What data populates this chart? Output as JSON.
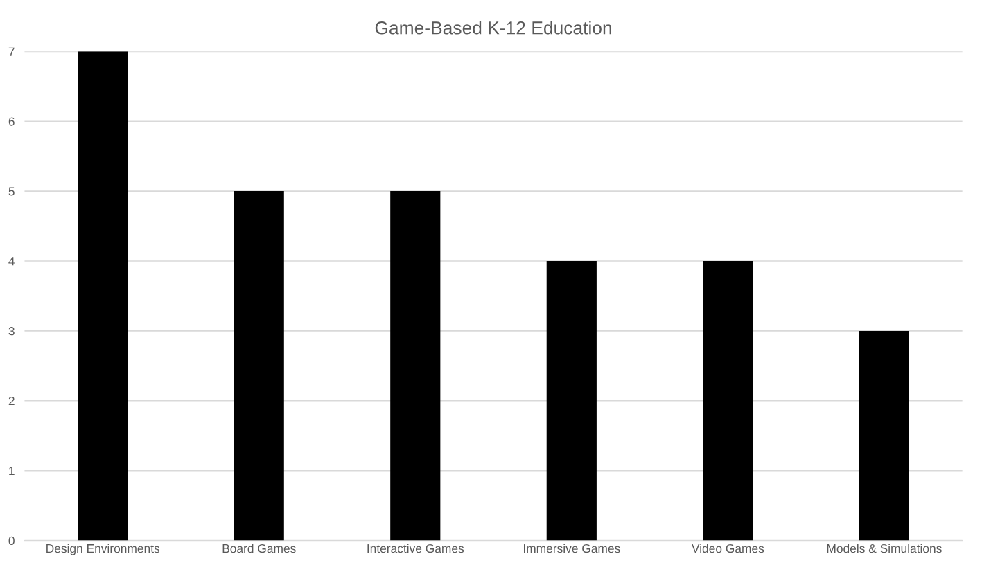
{
  "chart_data": {
    "type": "bar",
    "title": "Game-Based K-12 Education",
    "categories": [
      "Design Environments",
      "Board Games",
      "Interactive Games",
      "Immersive Games",
      "Video Games",
      "Models & Simulations"
    ],
    "values": [
      7,
      5,
      5,
      4,
      4,
      3
    ],
    "color": "#000000",
    "ylim": [
      0,
      7
    ],
    "yticks": [
      0,
      1,
      2,
      3,
      4,
      5,
      6,
      7
    ],
    "grid": "y"
  }
}
